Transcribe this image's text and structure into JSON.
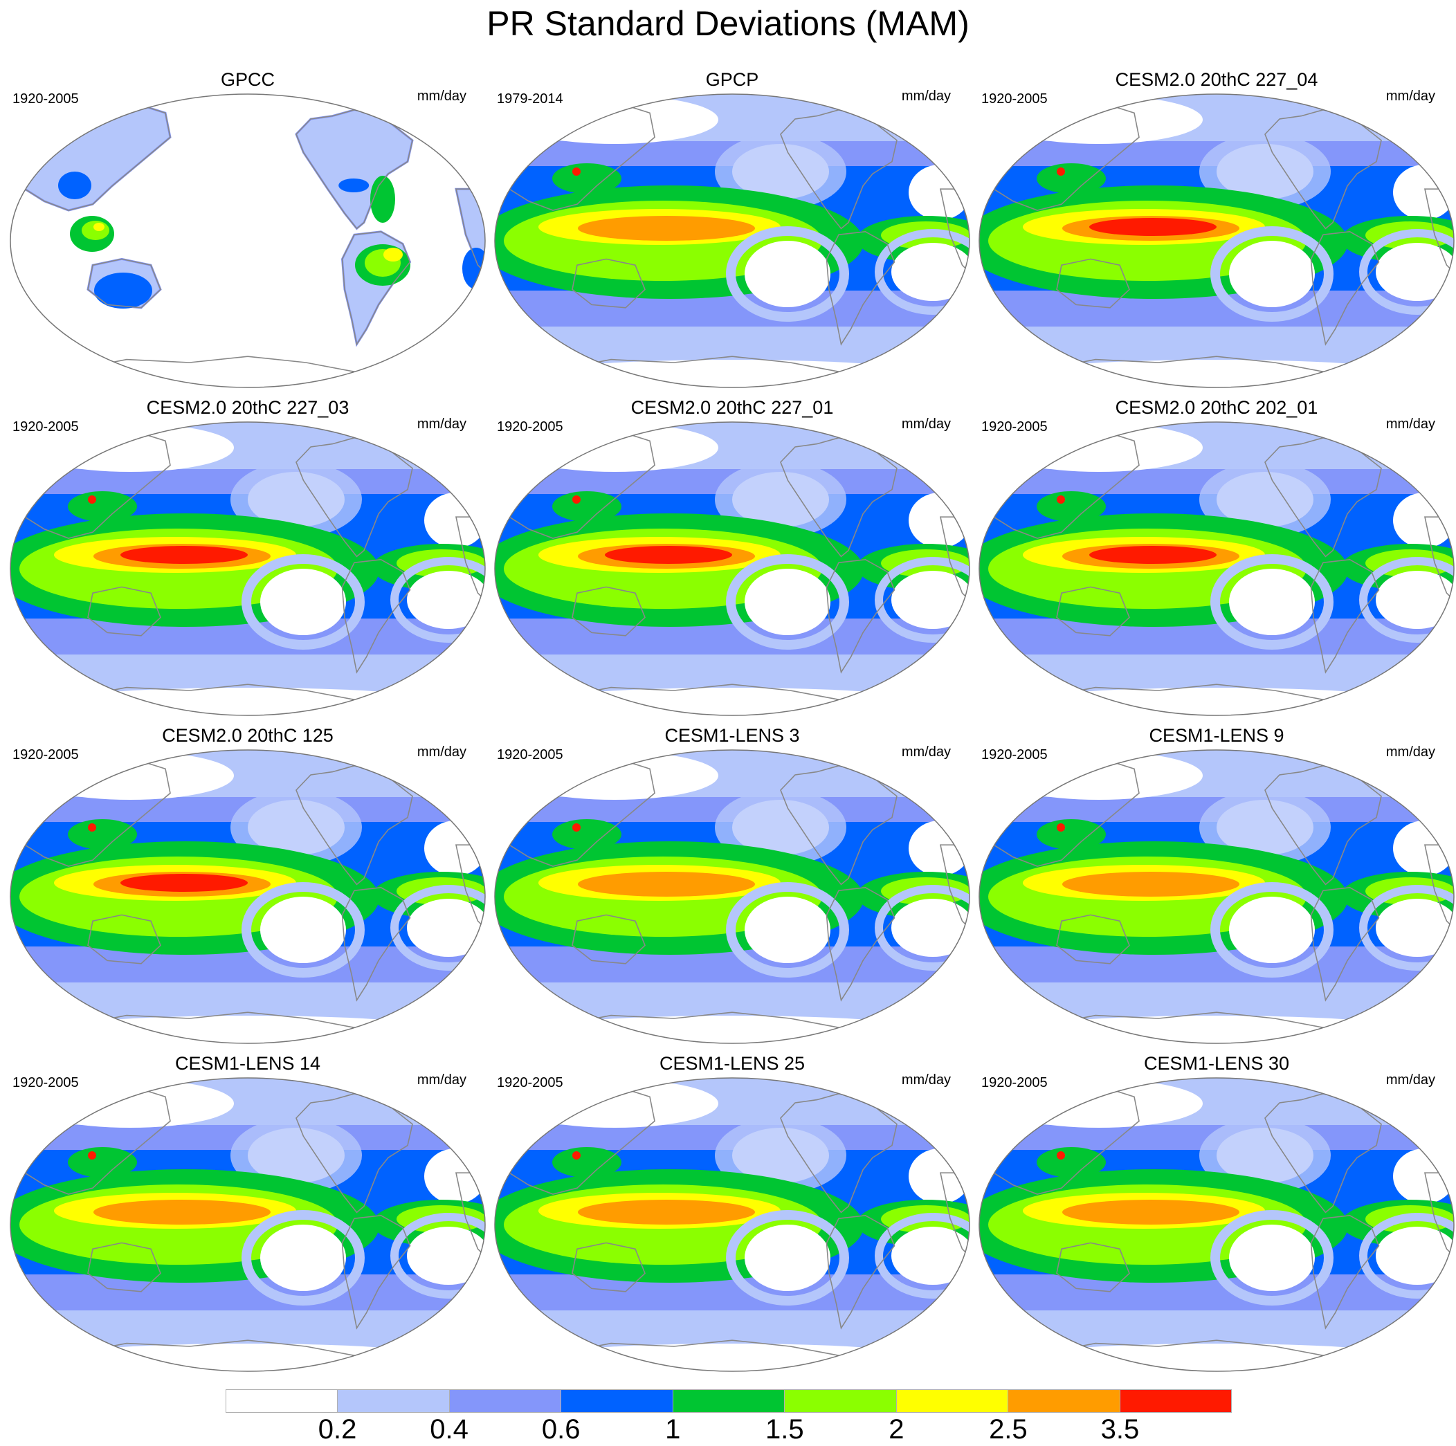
{
  "title": "PR Standard Deviations (MAM)",
  "colors": {
    "levels": [
      "#ffffff",
      "#b4c6fb",
      "#8496fa",
      "#0062ff",
      "#00c532",
      "#8bff00",
      "#ffff00",
      "#ff9c00",
      "#ff1a00"
    ],
    "continent_outline": "#888888",
    "map_border": "#777777"
  },
  "panels": [
    {
      "title": "GPCC",
      "period": "1920-2005",
      "units": "mm/day",
      "type": "land_only",
      "intensity": 0.5
    },
    {
      "title": "GPCP",
      "period": "1979-2014",
      "units": "mm/day",
      "type": "ocean",
      "intensity": 0.82
    },
    {
      "title": "CESM2.0 20thC 227_04",
      "period": "1920-2005",
      "units": "mm/day",
      "type": "ocean",
      "intensity": 1.0
    },
    {
      "title": "CESM2.0 20thC 227_03",
      "period": "1920-2005",
      "units": "mm/day",
      "type": "ocean",
      "intensity": 1.0
    },
    {
      "title": "CESM2.0 20thC 227_01",
      "period": "1920-2005",
      "units": "mm/day",
      "type": "ocean",
      "intensity": 1.0
    },
    {
      "title": "CESM2.0 20thC 202_01",
      "period": "1920-2005",
      "units": "mm/day",
      "type": "ocean",
      "intensity": 1.0
    },
    {
      "title": "CESM2.0 20thC 125",
      "period": "1920-2005",
      "units": "mm/day",
      "type": "ocean",
      "intensity": 1.0
    },
    {
      "title": "CESM1-LENS 3",
      "period": "1920-2005",
      "units": "mm/day",
      "type": "ocean",
      "intensity": 0.82
    },
    {
      "title": "CESM1-LENS 9",
      "period": "1920-2005",
      "units": "mm/day",
      "type": "ocean",
      "intensity": 0.82
    },
    {
      "title": "CESM1-LENS 14",
      "period": "1920-2005",
      "units": "mm/day",
      "type": "ocean",
      "intensity": 0.85
    },
    {
      "title": "CESM1-LENS 25",
      "period": "1920-2005",
      "units": "mm/day",
      "type": "ocean",
      "intensity": 0.85
    },
    {
      "title": "CESM1-LENS 30",
      "period": "1920-2005",
      "units": "mm/day",
      "type": "ocean",
      "intensity": 0.85
    }
  ],
  "colorbar": {
    "ticks": [
      "0.2",
      "0.4",
      "0.6",
      "1",
      "1.5",
      "2",
      "2.5",
      "3.5"
    ]
  }
}
